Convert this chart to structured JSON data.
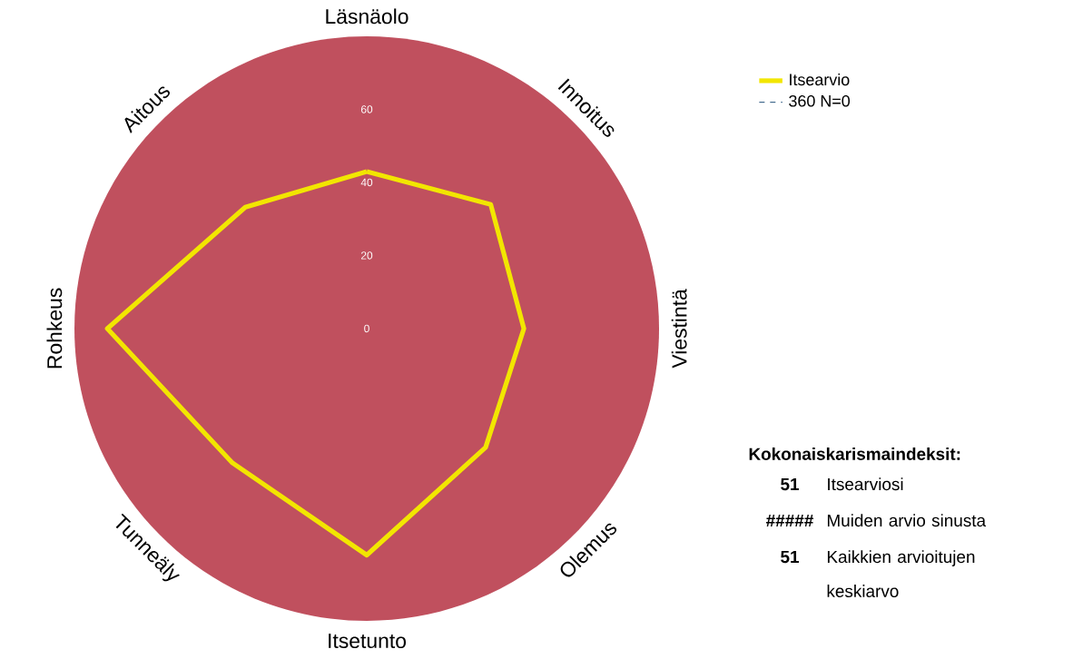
{
  "chart_data": {
    "type": "radar",
    "categories": [
      "Läsnäolo",
      "Innoitus",
      "Viestintä",
      "Olemus",
      "Itsetunto",
      "Tunneäly",
      "Rohkeus",
      "Aitous"
    ],
    "series": [
      {
        "name": "Itsearvio",
        "color": "#f2e600",
        "values": [
          43,
          48,
          43,
          46,
          62,
          52,
          71,
          47
        ]
      },
      {
        "name": "360    N=0",
        "color": "#1f4e79",
        "line_style": "dashed",
        "values": [
          null,
          null,
          null,
          null,
          null,
          null,
          null,
          null
        ]
      }
    ],
    "ylim": [
      0,
      80
    ],
    "yticks": [
      0,
      20,
      40,
      60
    ],
    "legend": "top right",
    "annotations": [
      "Kokonaiskarismaindeksit:",
      "51",
      "Itsearviosi",
      "#####",
      "Muiden arvio sinusta",
      "51",
      "Kaikkien arvioitujen keskiarvo"
    ]
  }
}
